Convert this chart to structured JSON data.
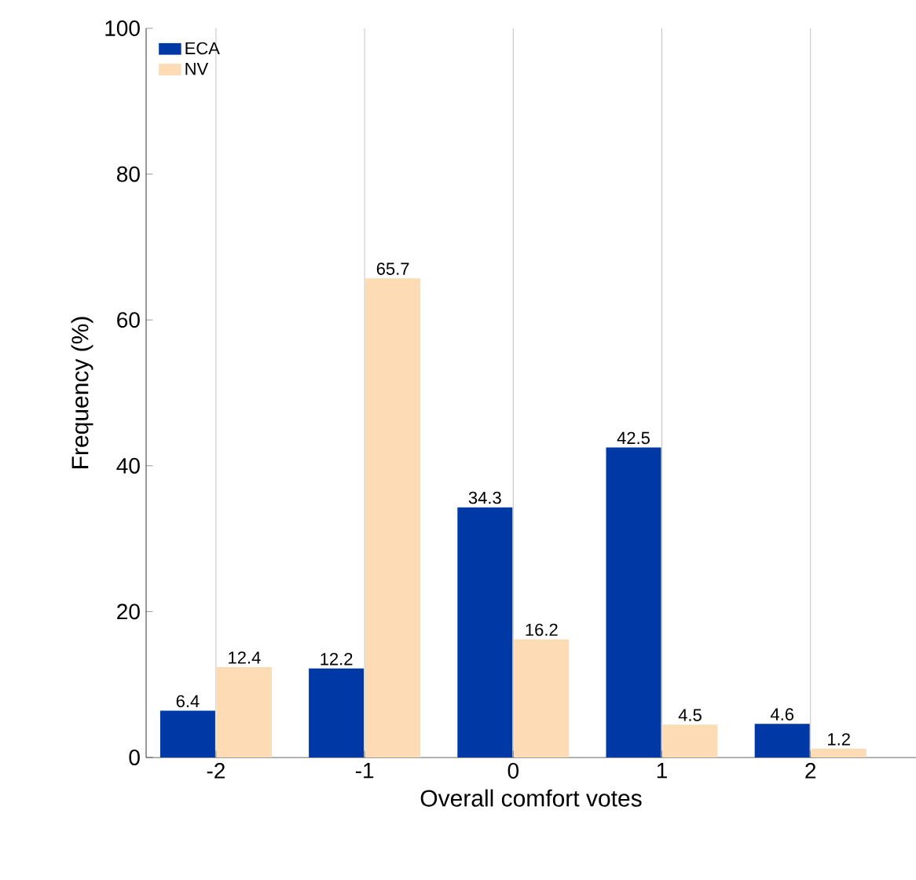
{
  "chart_data": {
    "type": "bar",
    "xlabel": "Overall comfort votes",
    "ylabel": "Frequency (%)",
    "categories": [
      "-2",
      "-1",
      "0",
      "1",
      "2"
    ],
    "series": [
      {
        "name": "ECA",
        "color": "#0039a6",
        "values": [
          6.4,
          12.2,
          34.3,
          42.5,
          4.6
        ]
      },
      {
        "name": "NV",
        "color": "#fddcb5",
        "values": [
          12.4,
          65.7,
          16.2,
          4.5,
          1.2
        ]
      }
    ],
    "ylim": [
      0,
      100
    ],
    "yticks": [
      0,
      20,
      40,
      60,
      80,
      100
    ],
    "grid": "x",
    "legend": "top left",
    "data_labels": true
  }
}
